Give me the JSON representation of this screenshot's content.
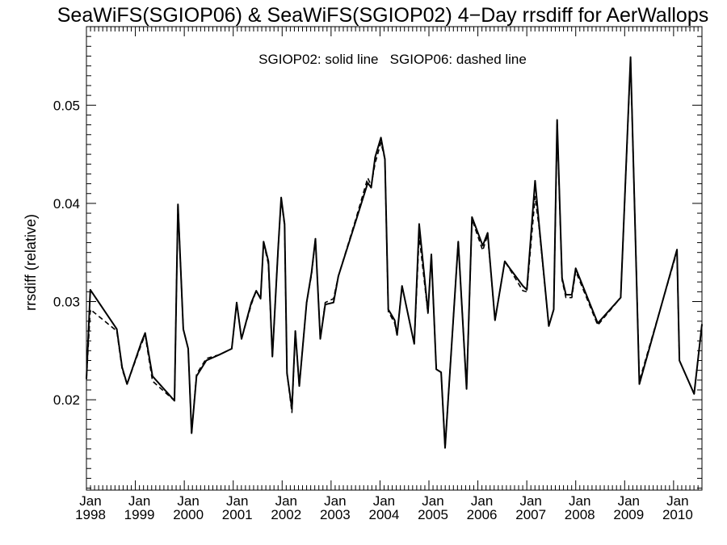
{
  "chart_data": {
    "type": "line",
    "title": "SeaWiFS(SGIOP06) & SeaWiFS(SGIOP02) 4−Day rrsdiff for AerWallops",
    "legend_text": "SGIOP02: solid line   SGIOP06: dashed line",
    "xlabel": "",
    "ylabel": "rrsdiff (relative)",
    "x_ticks": [
      {
        "month": "Jan",
        "year": "1998",
        "value": 1998.0
      },
      {
        "month": "Jan",
        "year": "1999",
        "value": 1999.0
      },
      {
        "month": "Jan",
        "year": "2000",
        "value": 2000.0
      },
      {
        "month": "Jan",
        "year": "2001",
        "value": 2001.0
      },
      {
        "month": "Jan",
        "year": "2002",
        "value": 2002.0
      },
      {
        "month": "Jan",
        "year": "2003",
        "value": 2003.0
      },
      {
        "month": "Jan",
        "year": "2004",
        "value": 2004.0
      },
      {
        "month": "Jan",
        "year": "2005",
        "value": 2005.0
      },
      {
        "month": "Jan",
        "year": "2006",
        "value": 2006.0
      },
      {
        "month": "Jan",
        "year": "2007",
        "value": 2007.0
      },
      {
        "month": "Jan",
        "year": "2008",
        "value": 2008.0
      },
      {
        "month": "Jan",
        "year": "2009",
        "value": 2009.0
      },
      {
        "month": "Jan",
        "year": "2010",
        "value": 2010.0
      }
    ],
    "y_ticks": [
      "0.02",
      "0.03",
      "0.04",
      "0.05"
    ],
    "xlim": [
      1998.0,
      2010.58
    ],
    "ylim": [
      0.0108,
      0.058
    ],
    "grid": false,
    "legend_position": "top-center",
    "series": [
      {
        "name": "SGIOP02",
        "style": "solid",
        "color": "#000000",
        "points": [
          [
            1998.0,
            0.0221
          ],
          [
            1998.08,
            0.0312
          ],
          [
            1998.62,
            0.0272
          ],
          [
            1998.73,
            0.0233
          ],
          [
            1998.83,
            0.0216
          ],
          [
            1999.12,
            0.0258
          ],
          [
            1999.2,
            0.0268
          ],
          [
            1999.35,
            0.0224
          ],
          [
            1999.8,
            0.0199
          ],
          [
            1999.87,
            0.0399
          ],
          [
            1999.98,
            0.0272
          ],
          [
            2000.08,
            0.0252
          ],
          [
            2000.15,
            0.0166
          ],
          [
            2000.25,
            0.0224
          ],
          [
            2000.45,
            0.024
          ],
          [
            2000.72,
            0.0246
          ],
          [
            2000.97,
            0.0252
          ],
          [
            2001.07,
            0.0299
          ],
          [
            2001.17,
            0.0262
          ],
          [
            2001.37,
            0.0299
          ],
          [
            2001.47,
            0.0311
          ],
          [
            2001.56,
            0.0303
          ],
          [
            2001.62,
            0.0361
          ],
          [
            2001.72,
            0.0341
          ],
          [
            2001.8,
            0.0244
          ],
          [
            2001.92,
            0.0355
          ],
          [
            2001.98,
            0.0406
          ],
          [
            2002.05,
            0.0379
          ],
          [
            2002.1,
            0.0227
          ],
          [
            2002.2,
            0.0191
          ],
          [
            2002.27,
            0.027
          ],
          [
            2002.35,
            0.0214
          ],
          [
            2002.5,
            0.0299
          ],
          [
            2002.6,
            0.0329
          ],
          [
            2002.68,
            0.0364
          ],
          [
            2002.78,
            0.0262
          ],
          [
            2002.88,
            0.0297
          ],
          [
            2003.05,
            0.0299
          ],
          [
            2003.15,
            0.0326
          ],
          [
            2003.5,
            0.0381
          ],
          [
            2003.75,
            0.0421
          ],
          [
            2003.82,
            0.0416
          ],
          [
            2003.9,
            0.0447
          ],
          [
            2004.02,
            0.0467
          ],
          [
            2004.1,
            0.0445
          ],
          [
            2004.17,
            0.0292
          ],
          [
            2004.3,
            0.0281
          ],
          [
            2004.35,
            0.0266
          ],
          [
            2004.45,
            0.0316
          ],
          [
            2004.7,
            0.0257
          ],
          [
            2004.8,
            0.0379
          ],
          [
            2004.98,
            0.0289
          ],
          [
            2005.05,
            0.0348
          ],
          [
            2005.15,
            0.0231
          ],
          [
            2005.25,
            0.0228
          ],
          [
            2005.33,
            0.0151
          ],
          [
            2005.6,
            0.0361
          ],
          [
            2005.77,
            0.0211
          ],
          [
            2005.88,
            0.0386
          ],
          [
            2006.1,
            0.0357
          ],
          [
            2006.2,
            0.037
          ],
          [
            2006.35,
            0.0281
          ],
          [
            2006.55,
            0.0341
          ],
          [
            2006.65,
            0.0334
          ],
          [
            2006.92,
            0.0316
          ],
          [
            2007.0,
            0.0312
          ],
          [
            2007.17,
            0.0423
          ],
          [
            2007.25,
            0.0379
          ],
          [
            2007.45,
            0.0275
          ],
          [
            2007.55,
            0.0292
          ],
          [
            2007.62,
            0.0485
          ],
          [
            2007.72,
            0.0324
          ],
          [
            2007.8,
            0.0307
          ],
          [
            2007.92,
            0.0307
          ],
          [
            2008.0,
            0.0334
          ],
          [
            2008.45,
            0.0278
          ],
          [
            2008.92,
            0.0304
          ],
          [
            2009.12,
            0.0549
          ],
          [
            2009.3,
            0.0216
          ],
          [
            2010.07,
            0.0353
          ],
          [
            2010.12,
            0.024
          ],
          [
            2010.42,
            0.0206
          ],
          [
            2010.58,
            0.0277
          ]
        ]
      },
      {
        "name": "SGIOP06",
        "style": "dashed",
        "color": "#000000",
        "points": [
          [
            1998.0,
            0.0221
          ],
          [
            1998.08,
            0.0292
          ],
          [
            1998.62,
            0.027
          ],
          [
            1998.73,
            0.0231
          ],
          [
            1998.83,
            0.0216
          ],
          [
            1999.12,
            0.0256
          ],
          [
            1999.2,
            0.0266
          ],
          [
            1999.35,
            0.0219
          ],
          [
            1999.8,
            0.0199
          ],
          [
            1999.87,
            0.0399
          ],
          [
            1999.98,
            0.0272
          ],
          [
            2000.08,
            0.0252
          ],
          [
            2000.15,
            0.0166
          ],
          [
            2000.25,
            0.0226
          ],
          [
            2000.45,
            0.0242
          ],
          [
            2000.72,
            0.0246
          ],
          [
            2000.97,
            0.0252
          ],
          [
            2001.07,
            0.0299
          ],
          [
            2001.17,
            0.0262
          ],
          [
            2001.37,
            0.0297
          ],
          [
            2001.47,
            0.0311
          ],
          [
            2001.56,
            0.0303
          ],
          [
            2001.62,
            0.036
          ],
          [
            2001.72,
            0.0338
          ],
          [
            2001.8,
            0.0244
          ],
          [
            2001.92,
            0.0355
          ],
          [
            2001.98,
            0.0404
          ],
          [
            2002.05,
            0.0377
          ],
          [
            2002.1,
            0.0227
          ],
          [
            2002.2,
            0.0187
          ],
          [
            2002.27,
            0.027
          ],
          [
            2002.35,
            0.0214
          ],
          [
            2002.5,
            0.0299
          ],
          [
            2002.6,
            0.0327
          ],
          [
            2002.68,
            0.0364
          ],
          [
            2002.78,
            0.0262
          ],
          [
            2002.88,
            0.0299
          ],
          [
            2003.05,
            0.0303
          ],
          [
            2003.15,
            0.0326
          ],
          [
            2003.5,
            0.0383
          ],
          [
            2003.75,
            0.0426
          ],
          [
            2003.82,
            0.0418
          ],
          [
            2003.9,
            0.0441
          ],
          [
            2004.02,
            0.0462
          ],
          [
            2004.1,
            0.0445
          ],
          [
            2004.17,
            0.029
          ],
          [
            2004.3,
            0.0278
          ],
          [
            2004.35,
            0.0266
          ],
          [
            2004.45,
            0.0316
          ],
          [
            2004.7,
            0.0257
          ],
          [
            2004.8,
            0.0367
          ],
          [
            2004.98,
            0.0288
          ],
          [
            2005.05,
            0.0348
          ],
          [
            2005.15,
            0.0231
          ],
          [
            2005.25,
            0.0228
          ],
          [
            2005.33,
            0.0151
          ],
          [
            2005.6,
            0.0361
          ],
          [
            2005.77,
            0.0211
          ],
          [
            2005.88,
            0.0384
          ],
          [
            2006.1,
            0.0352
          ],
          [
            2006.2,
            0.0368
          ],
          [
            2006.35,
            0.0281
          ],
          [
            2006.55,
            0.0341
          ],
          [
            2006.65,
            0.0333
          ],
          [
            2006.92,
            0.0311
          ],
          [
            2007.0,
            0.031
          ],
          [
            2007.17,
            0.0407
          ],
          [
            2007.25,
            0.0376
          ],
          [
            2007.45,
            0.0275
          ],
          [
            2007.55,
            0.0292
          ],
          [
            2007.62,
            0.0482
          ],
          [
            2007.72,
            0.0322
          ],
          [
            2007.8,
            0.0304
          ],
          [
            2007.92,
            0.0304
          ],
          [
            2008.0,
            0.0331
          ],
          [
            2008.45,
            0.0276
          ],
          [
            2008.92,
            0.0304
          ],
          [
            2009.12,
            0.0547
          ],
          [
            2009.3,
            0.0219
          ],
          [
            2010.07,
            0.0351
          ],
          [
            2010.12,
            0.024
          ],
          [
            2010.42,
            0.0206
          ],
          [
            2010.58,
            0.0277
          ]
        ]
      }
    ]
  }
}
